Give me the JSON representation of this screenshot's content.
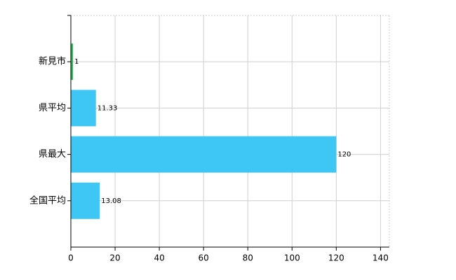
{
  "chart_data": {
    "type": "barh",
    "categories": [
      "新見市",
      "県平均",
      "県最大",
      "全国平均"
    ],
    "values": [
      1,
      11.33,
      120,
      13.08
    ],
    "colors": [
      "#2db85a",
      "#3ec6f5",
      "#3ec6f5",
      "#3ec6f5"
    ],
    "xlim": [
      0,
      144
    ],
    "xticks": [
      0,
      20,
      40,
      60,
      80,
      100,
      120,
      140
    ],
    "grid": true
  }
}
